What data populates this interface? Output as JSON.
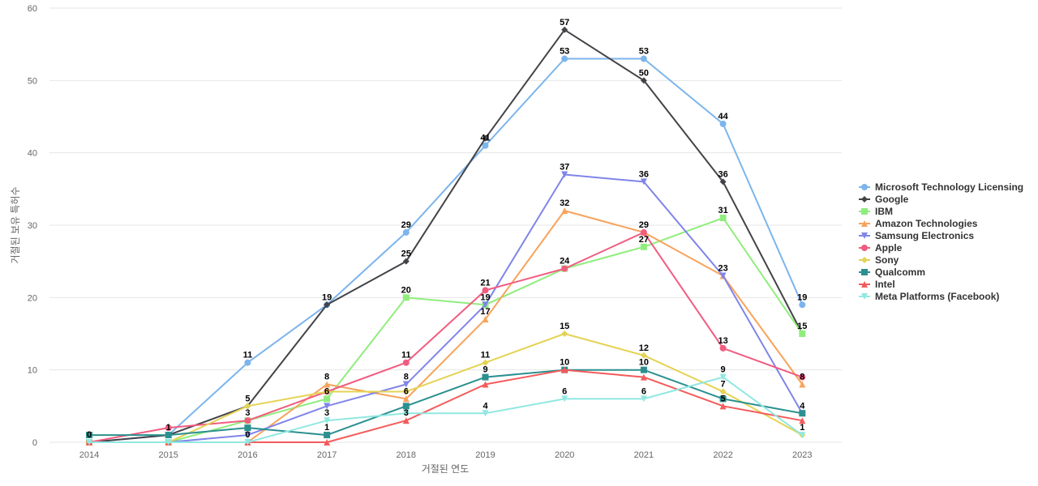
{
  "chart_data": {
    "type": "line",
    "title": "",
    "xlabel": "거절된 연도",
    "ylabel": "거절된 보유 특허수",
    "categories": [
      "2014",
      "2015",
      "2016",
      "2017",
      "2018",
      "2019",
      "2020",
      "2021",
      "2022",
      "2023"
    ],
    "ylim": [
      0,
      60
    ],
    "yticks": [
      0,
      10,
      20,
      30,
      40,
      50,
      60
    ],
    "grid": true,
    "legend_position": "right",
    "series": [
      {
        "name": "Microsoft Technology Licensing",
        "color": "#7cb5ec",
        "marker": "circle",
        "values": [
          0,
          1,
          11,
          19,
          29,
          41,
          53,
          53,
          44,
          19
        ]
      },
      {
        "name": "Google",
        "color": "#434348",
        "marker": "diamond",
        "values": [
          0,
          1,
          5,
          19,
          25,
          42,
          57,
          50,
          36,
          15
        ]
      },
      {
        "name": "IBM",
        "color": "#90ed7d",
        "marker": "square",
        "values": [
          0,
          0,
          3,
          6,
          20,
          19,
          24,
          27,
          31,
          15
        ]
      },
      {
        "name": "Amazon Technologies",
        "color": "#f7a35c",
        "marker": "triangle",
        "values": [
          0,
          0,
          0,
          8,
          6,
          17,
          32,
          29,
          23,
          8
        ]
      },
      {
        "name": "Samsung Electronics",
        "color": "#8085e9",
        "marker": "triangle-down",
        "values": [
          0,
          0,
          1,
          5,
          8,
          19,
          37,
          36,
          23,
          4
        ]
      },
      {
        "name": "Apple",
        "color": "#f15c80",
        "marker": "circle",
        "values": [
          0,
          2,
          3,
          7,
          11,
          21,
          24,
          29,
          13,
          9
        ]
      },
      {
        "name": "Sony",
        "color": "#e4d354",
        "marker": "diamond",
        "values": [
          0,
          0,
          5,
          7,
          7,
          11,
          15,
          12,
          7,
          1
        ]
      },
      {
        "name": "Qualcomm",
        "color": "#2b908f",
        "marker": "square",
        "values": [
          1,
          1,
          2,
          1,
          5,
          9,
          10,
          10,
          6,
          4
        ]
      },
      {
        "name": "Intel",
        "color": "#f45b5b",
        "marker": "triangle",
        "values": [
          0,
          0,
          0,
          0,
          3,
          8,
          10,
          9,
          5,
          3
        ]
      },
      {
        "name": "Meta Platforms (Facebook)",
        "color": "#91e8e1",
        "marker": "triangle-down",
        "values": [
          0,
          0,
          0,
          3,
          4,
          4,
          6,
          6,
          9,
          1
        ]
      }
    ],
    "data_labels": [
      {
        "x": "2014",
        "text": "0"
      },
      {
        "x": "2015",
        "text": "1"
      },
      {
        "x": "2016",
        "text": "11"
      },
      {
        "x": "2016",
        "text": "5"
      },
      {
        "x": "2016",
        "text": "3"
      },
      {
        "x": "2016",
        "text": "0"
      },
      {
        "x": "2017",
        "text": "19"
      },
      {
        "x": "2017",
        "text": "8"
      },
      {
        "x": "2017",
        "text": "6"
      },
      {
        "x": "2017",
        "text": "3"
      },
      {
        "x": "2017",
        "text": "1"
      },
      {
        "x": "2018",
        "text": "29"
      },
      {
        "x": "2018",
        "text": "25"
      },
      {
        "x": "2018",
        "text": "20"
      },
      {
        "x": "2018",
        "text": "11"
      },
      {
        "x": "2018",
        "text": "8"
      },
      {
        "x": "2018",
        "text": "6"
      },
      {
        "x": "2018",
        "text": "3"
      },
      {
        "x": "2019",
        "text": "41"
      },
      {
        "x": "2019",
        "text": "21"
      },
      {
        "x": "2019",
        "text": "19"
      },
      {
        "x": "2019",
        "text": "17"
      },
      {
        "x": "2019",
        "text": "11"
      },
      {
        "x": "2019",
        "text": "9"
      },
      {
        "x": "2019",
        "text": "4"
      },
      {
        "x": "2020",
        "text": "57"
      },
      {
        "x": "2020",
        "text": "53"
      },
      {
        "x": "2020",
        "text": "37"
      },
      {
        "x": "2020",
        "text": "32"
      },
      {
        "x": "2020",
        "text": "24"
      },
      {
        "x": "2020",
        "text": "15"
      },
      {
        "x": "2020",
        "text": "10"
      },
      {
        "x": "2020",
        "text": "6"
      },
      {
        "x": "2021",
        "text": "53"
      },
      {
        "x": "2021",
        "text": "50"
      },
      {
        "x": "2021",
        "text": "36"
      },
      {
        "x": "2021",
        "text": "29"
      },
      {
        "x": "2021",
        "text": "27"
      },
      {
        "x": "2021",
        "text": "12"
      },
      {
        "x": "2021",
        "text": "10"
      },
      {
        "x": "2021",
        "text": "6"
      },
      {
        "x": "2022",
        "text": "44"
      },
      {
        "x": "2022",
        "text": "36"
      },
      {
        "x": "2022",
        "text": "31"
      },
      {
        "x": "2022",
        "text": "23"
      },
      {
        "x": "2022",
        "text": "13"
      },
      {
        "x": "2022",
        "text": "9"
      },
      {
        "x": "2022",
        "text": "7"
      },
      {
        "x": "2022",
        "text": "5"
      },
      {
        "x": "2023",
        "text": "19"
      },
      {
        "x": "2023",
        "text": "15"
      },
      {
        "x": "2023",
        "text": "8"
      },
      {
        "x": "2023",
        "text": "4"
      },
      {
        "x": "2023",
        "text": "1"
      }
    ]
  }
}
